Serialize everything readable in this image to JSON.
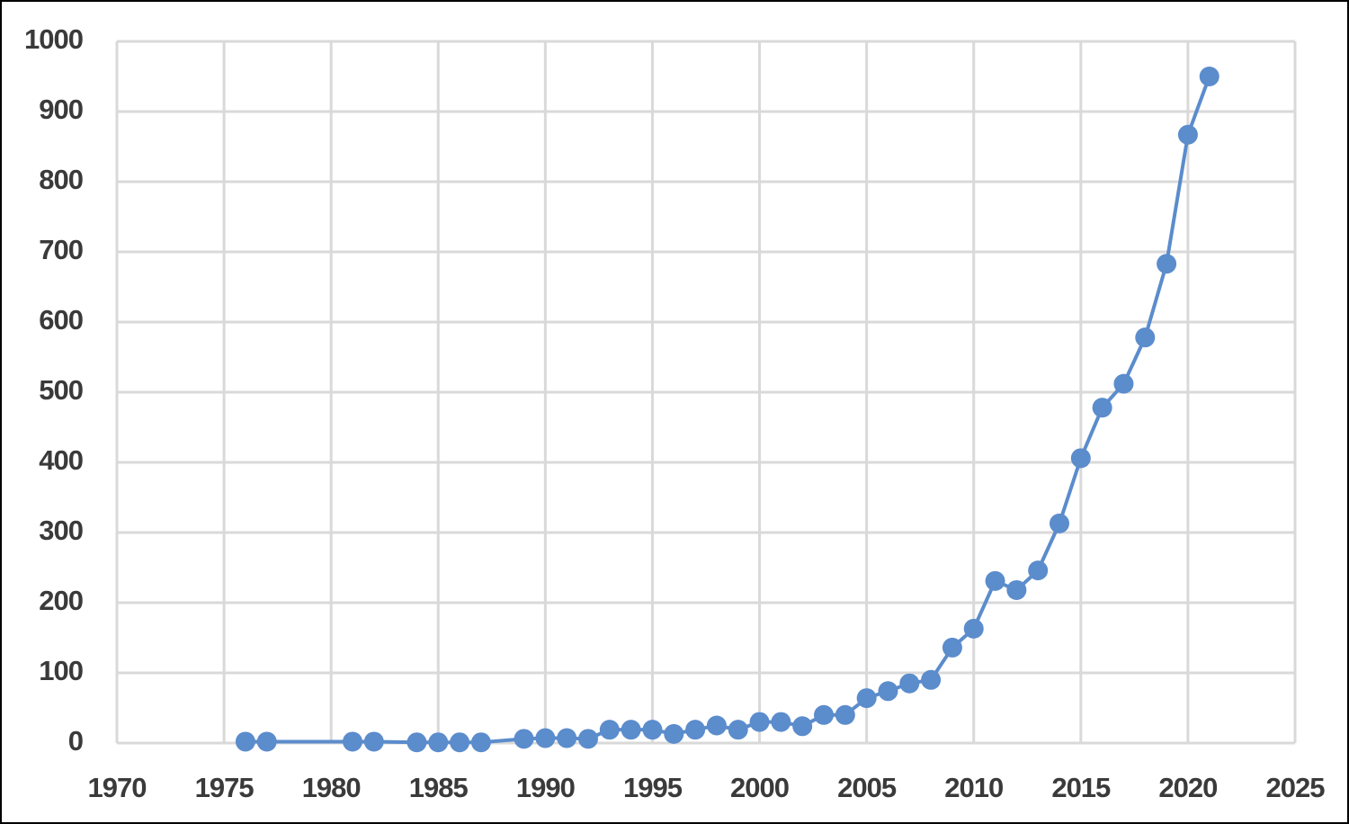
{
  "chart_data": {
    "type": "line",
    "x": [
      1976,
      1977,
      1981,
      1982,
      1984,
      1985,
      1986,
      1987,
      1989,
      1990,
      1991,
      1992,
      1993,
      1994,
      1995,
      1996,
      1997,
      1998,
      1999,
      2000,
      2001,
      2002,
      2003,
      2004,
      2005,
      2006,
      2007,
      2008,
      2009,
      2010,
      2011,
      2012,
      2013,
      2014,
      2015,
      2016,
      2017,
      2018,
      2019,
      2020,
      2021
    ],
    "series": [
      {
        "color": "#5b8ccc",
        "values": [
          2,
          2,
          2,
          2,
          1,
          1,
          1,
          1,
          6,
          7,
          7,
          6,
          19,
          19,
          19,
          13,
          19,
          25,
          19,
          30,
          30,
          24,
          40,
          40,
          64,
          74,
          85,
          90,
          136,
          163,
          231,
          218,
          246,
          313,
          406,
          478,
          512,
          578,
          683,
          867,
          950
        ]
      }
    ],
    "xlim": [
      1970,
      2025
    ],
    "xticks": [
      1970,
      1975,
      1980,
      1985,
      1990,
      1995,
      2000,
      2005,
      2010,
      2015,
      2020,
      2025
    ],
    "ylim": [
      0,
      1000
    ],
    "yticks": [
      0,
      100,
      200,
      300,
      400,
      500,
      600,
      700,
      800,
      900,
      1000
    ],
    "grid": true
  }
}
